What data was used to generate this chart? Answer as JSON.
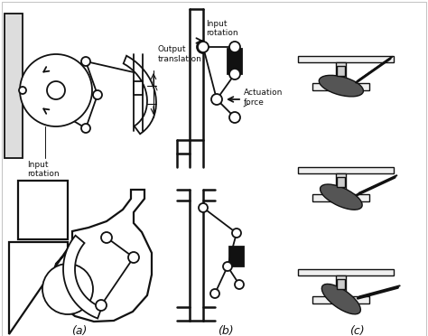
{
  "background_color": "#ffffff",
  "label_a": "(a)",
  "label_b": "(b)",
  "label_c": "(c)",
  "text_output_translation": "Output\ntranslation",
  "text_input_rotation_top": "Input\nrotation",
  "text_input_rotation_bottom": "Input\nrotation",
  "text_actuation_force": "Actuation\nforce",
  "fig_width": 4.74,
  "fig_height": 3.72,
  "dpi": 100,
  "line_color": "#111111",
  "lw": 1.3
}
